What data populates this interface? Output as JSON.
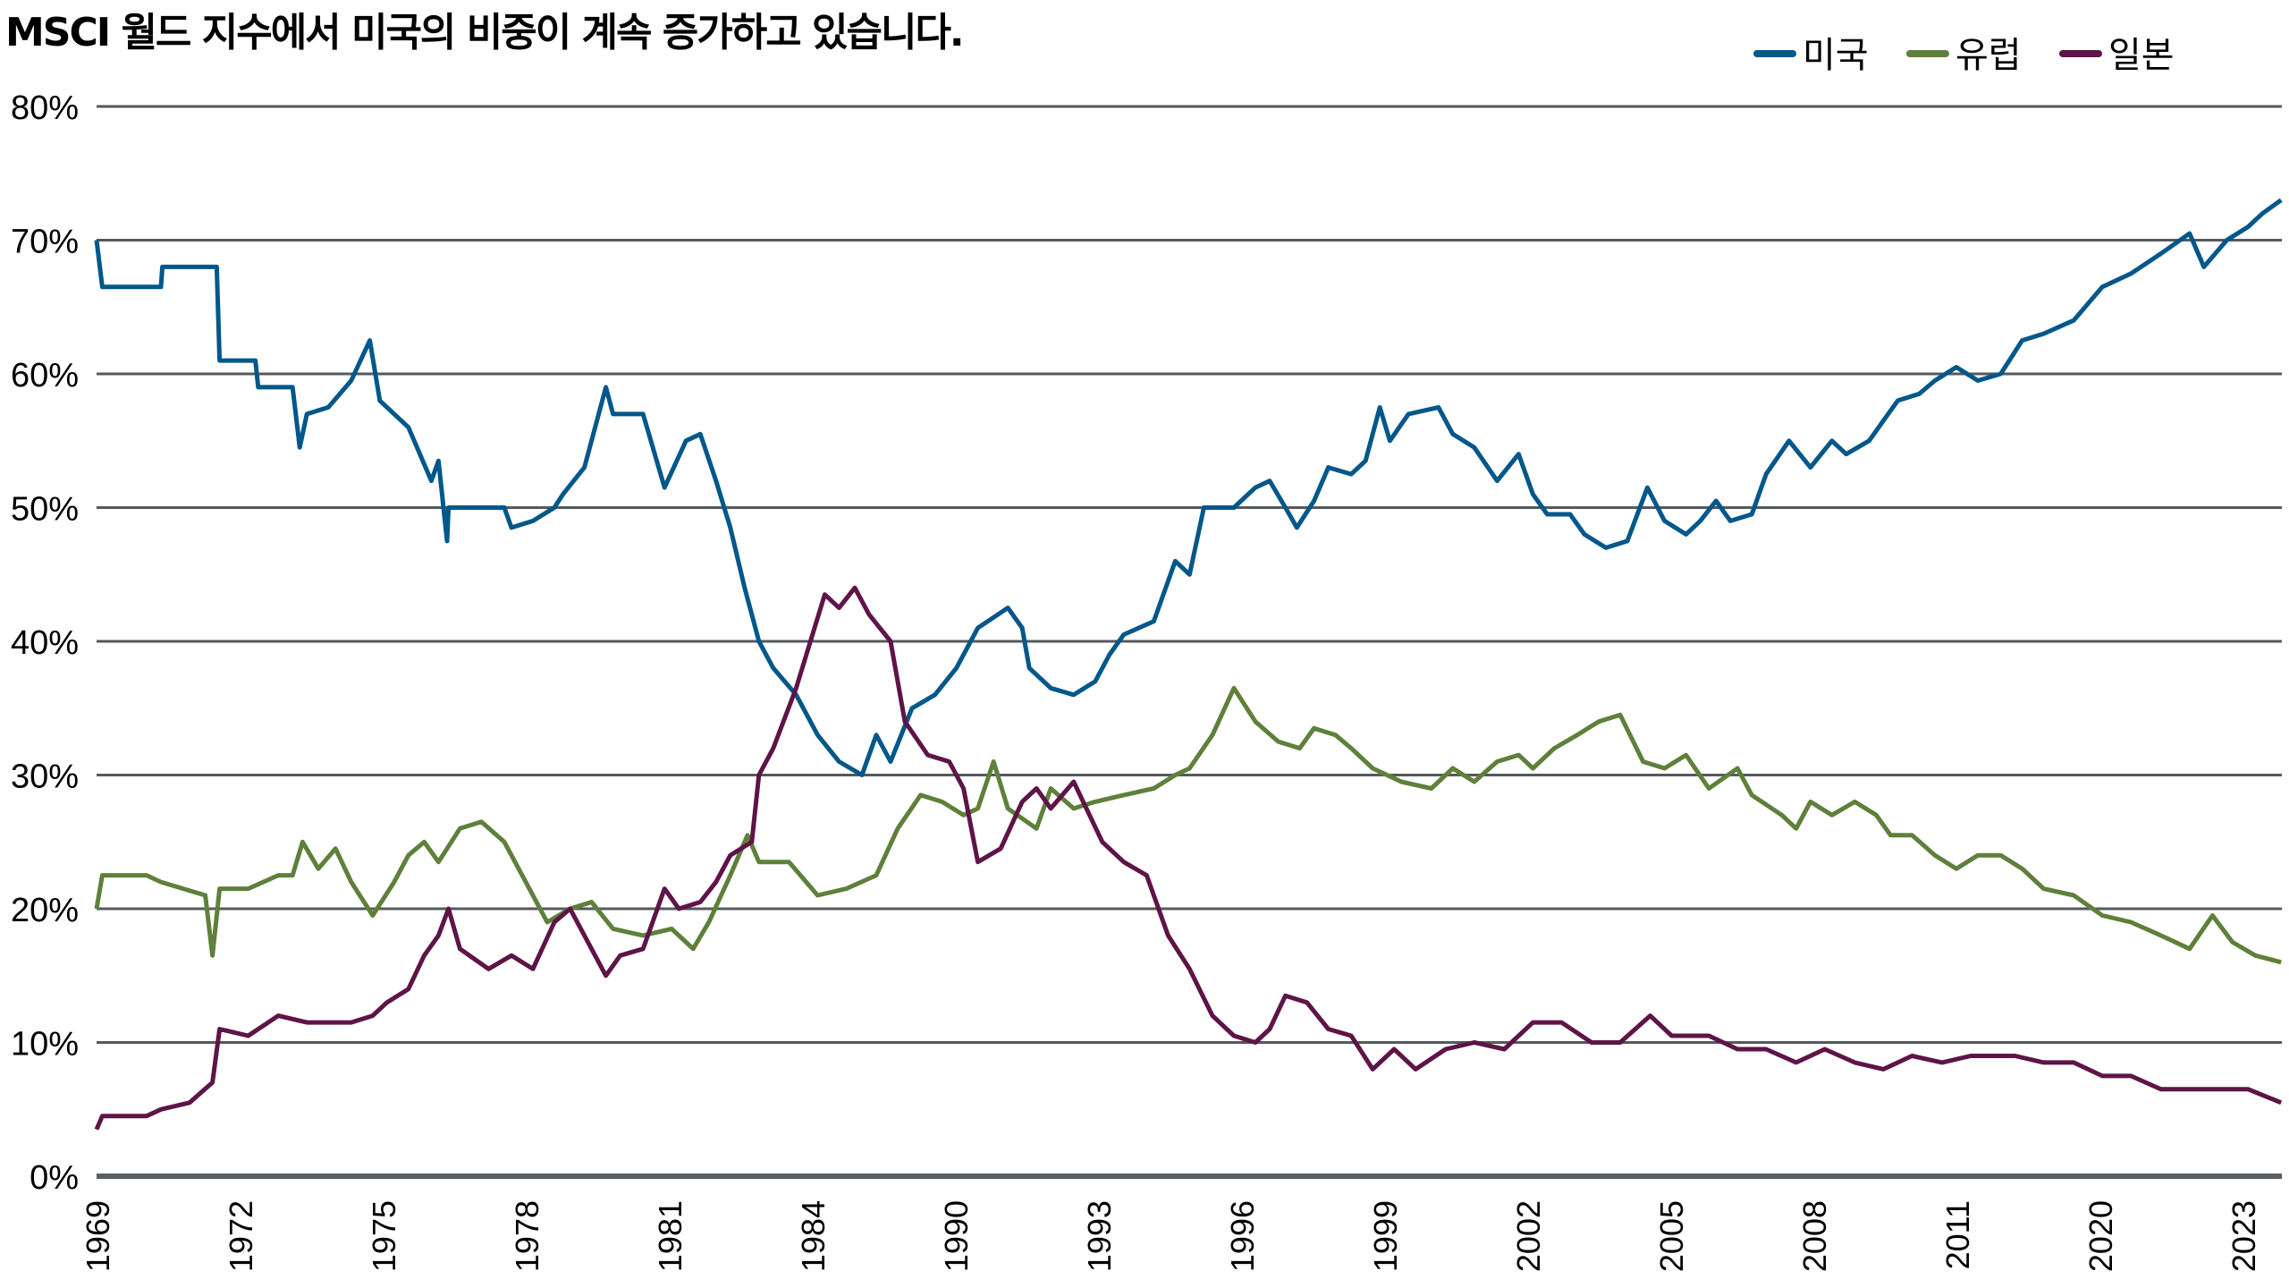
{
  "chart_data": {
    "type": "line",
    "title": "MSCI 월드 지수에서 미국의 비중이 계속 증가하고 있습니다.",
    "xlabel": "",
    "ylabel": "",
    "x_note": "x values are positions along the categorical year axis (0 = 1969 tick, 1 = next tick, ...)",
    "x_tick_labels": [
      "1969",
      "1972",
      "1975",
      "1978",
      "1981",
      "1984",
      "1990",
      "1993",
      "1996",
      "1999",
      "2002",
      "2005",
      "2008",
      "2011",
      "2020",
      "2023"
    ],
    "y_tick_labels": [
      "0%",
      "10%",
      "20%",
      "30%",
      "40%",
      "50%",
      "60%",
      "70%",
      "80%"
    ],
    "ylim": [
      0,
      80
    ],
    "xlim": [
      0,
      15.27
    ],
    "grid": "horizontal",
    "legend_position": "top-right",
    "series": [
      {
        "name": "미국",
        "color": "#00578a",
        "points": [
          [
            0,
            70
          ],
          [
            0.04,
            66.5
          ],
          [
            0.45,
            66.5
          ],
          [
            0.46,
            68
          ],
          [
            0.84,
            68
          ],
          [
            0.86,
            61
          ],
          [
            1.11,
            61
          ],
          [
            1.13,
            59
          ],
          [
            1.37,
            59
          ],
          [
            1.42,
            54.5
          ],
          [
            1.47,
            57
          ],
          [
            1.62,
            57.5
          ],
          [
            1.78,
            59.5
          ],
          [
            1.91,
            62.5
          ],
          [
            1.98,
            58
          ],
          [
            2.18,
            56
          ],
          [
            2.34,
            52
          ],
          [
            2.39,
            53.5
          ],
          [
            2.45,
            47.5
          ],
          [
            2.46,
            50
          ],
          [
            2.59,
            50
          ],
          [
            2.85,
            50
          ],
          [
            2.9,
            48.5
          ],
          [
            3.05,
            49
          ],
          [
            3.2,
            50
          ],
          [
            3.26,
            51
          ],
          [
            3.41,
            53
          ],
          [
            3.56,
            59
          ],
          [
            3.61,
            57
          ],
          [
            3.82,
            57
          ],
          [
            3.97,
            51.5
          ],
          [
            4.12,
            55
          ],
          [
            4.22,
            55.5
          ],
          [
            4.33,
            52
          ],
          [
            4.43,
            48.5
          ],
          [
            4.53,
            44
          ],
          [
            4.63,
            40
          ],
          [
            4.73,
            38
          ],
          [
            4.89,
            36
          ],
          [
            5.04,
            33
          ],
          [
            5.19,
            31
          ],
          [
            5.35,
            30
          ],
          [
            5.45,
            33
          ],
          [
            5.55,
            31
          ],
          [
            5.7,
            35
          ],
          [
            5.86,
            36
          ],
          [
            6.01,
            38
          ],
          [
            6.16,
            41
          ],
          [
            6.37,
            42.5
          ],
          [
            6.47,
            41
          ],
          [
            6.52,
            38
          ],
          [
            6.67,
            36.5
          ],
          [
            6.83,
            36
          ],
          [
            6.98,
            37
          ],
          [
            7.08,
            39
          ],
          [
            7.18,
            40.5
          ],
          [
            7.39,
            41.5
          ],
          [
            7.54,
            46
          ],
          [
            7.64,
            45
          ],
          [
            7.74,
            50
          ],
          [
            7.95,
            50
          ],
          [
            8.1,
            51.5
          ],
          [
            8.2,
            52
          ],
          [
            8.31,
            50
          ],
          [
            8.39,
            48.5
          ],
          [
            8.51,
            50.5
          ],
          [
            8.61,
            53
          ],
          [
            8.77,
            52.5
          ],
          [
            8.87,
            53.5
          ],
          [
            8.97,
            57.5
          ],
          [
            9.04,
            55
          ],
          [
            9.17,
            57
          ],
          [
            9.38,
            57.5
          ],
          [
            9.48,
            55.5
          ],
          [
            9.63,
            54.5
          ],
          [
            9.79,
            52
          ],
          [
            9.94,
            54
          ],
          [
            10.04,
            51
          ],
          [
            10.14,
            49.5
          ],
          [
            10.3,
            49.5
          ],
          [
            10.4,
            48
          ],
          [
            10.55,
            47
          ],
          [
            10.7,
            47.5
          ],
          [
            10.84,
            51.5
          ],
          [
            10.96,
            49
          ],
          [
            11.11,
            48
          ],
          [
            11.21,
            49
          ],
          [
            11.32,
            50.5
          ],
          [
            11.42,
            49
          ],
          [
            11.57,
            49.5
          ],
          [
            11.67,
            52.5
          ],
          [
            11.83,
            55
          ],
          [
            11.98,
            53
          ],
          [
            12.13,
            55
          ],
          [
            12.23,
            54
          ],
          [
            12.39,
            55
          ],
          [
            12.49,
            56.5
          ],
          [
            12.59,
            58
          ],
          [
            12.74,
            58.5
          ],
          [
            12.85,
            59.5
          ],
          [
            13.0,
            60.5
          ],
          [
            13.15,
            59.5
          ],
          [
            13.31,
            60
          ],
          [
            13.46,
            62.5
          ],
          [
            13.61,
            63
          ],
          [
            13.82,
            64
          ],
          [
            14.02,
            66.5
          ],
          [
            14.22,
            67.5
          ],
          [
            14.43,
            69
          ],
          [
            14.63,
            70.5
          ],
          [
            14.73,
            68
          ],
          [
            14.89,
            70
          ],
          [
            15.04,
            71
          ],
          [
            15.14,
            72
          ],
          [
            15.27,
            73
          ]
        ]
      },
      {
        "name": "유럽",
        "color": "#5f803b",
        "points": [
          [
            0,
            20
          ],
          [
            0.04,
            22.5
          ],
          [
            0.35,
            22.5
          ],
          [
            0.45,
            22
          ],
          [
            0.76,
            21
          ],
          [
            0.81,
            16.5
          ],
          [
            0.86,
            21.5
          ],
          [
            1.06,
            21.5
          ],
          [
            1.27,
            22.5
          ],
          [
            1.37,
            22.5
          ],
          [
            1.44,
            25
          ],
          [
            1.55,
            23
          ],
          [
            1.67,
            24.5
          ],
          [
            1.78,
            22
          ],
          [
            1.93,
            19.5
          ],
          [
            2.08,
            22
          ],
          [
            2.18,
            24
          ],
          [
            2.29,
            25
          ],
          [
            2.39,
            23.5
          ],
          [
            2.54,
            26
          ],
          [
            2.69,
            26.5
          ],
          [
            2.85,
            25
          ],
          [
            3.0,
            22
          ],
          [
            3.15,
            19
          ],
          [
            3.31,
            20
          ],
          [
            3.46,
            20.5
          ],
          [
            3.61,
            18.5
          ],
          [
            3.82,
            18
          ],
          [
            4.02,
            18.5
          ],
          [
            4.17,
            17
          ],
          [
            4.28,
            19
          ],
          [
            4.43,
            22.5
          ],
          [
            4.55,
            25.5
          ],
          [
            4.63,
            23.5
          ],
          [
            4.84,
            23.5
          ],
          [
            5.04,
            21
          ],
          [
            5.24,
            21.5
          ],
          [
            5.45,
            22.5
          ],
          [
            5.6,
            26
          ],
          [
            5.76,
            28.5
          ],
          [
            5.91,
            28
          ],
          [
            6.06,
            27
          ],
          [
            6.16,
            27.5
          ],
          [
            6.27,
            31
          ],
          [
            6.37,
            27.5
          ],
          [
            6.57,
            26
          ],
          [
            6.67,
            29
          ],
          [
            6.83,
            27.5
          ],
          [
            6.98,
            28
          ],
          [
            7.18,
            28.5
          ],
          [
            7.39,
            29
          ],
          [
            7.54,
            30
          ],
          [
            7.64,
            30.5
          ],
          [
            7.8,
            33
          ],
          [
            7.95,
            36.5
          ],
          [
            8.1,
            34
          ],
          [
            8.26,
            32.5
          ],
          [
            8.41,
            32
          ],
          [
            8.51,
            33.5
          ],
          [
            8.66,
            33
          ],
          [
            8.77,
            32
          ],
          [
            8.92,
            30.5
          ],
          [
            9.12,
            29.5
          ],
          [
            9.33,
            29
          ],
          [
            9.48,
            30.5
          ],
          [
            9.63,
            29.5
          ],
          [
            9.79,
            31
          ],
          [
            9.94,
            31.5
          ],
          [
            10.04,
            30.5
          ],
          [
            10.19,
            32
          ],
          [
            10.35,
            33
          ],
          [
            10.5,
            34
          ],
          [
            10.65,
            34.5
          ],
          [
            10.81,
            31
          ],
          [
            10.96,
            30.5
          ],
          [
            11.11,
            31.5
          ],
          [
            11.27,
            29
          ],
          [
            11.47,
            30.5
          ],
          [
            11.57,
            28.5
          ],
          [
            11.78,
            27
          ],
          [
            11.88,
            26
          ],
          [
            11.98,
            28
          ],
          [
            12.13,
            27
          ],
          [
            12.29,
            28
          ],
          [
            12.44,
            27
          ],
          [
            12.54,
            25.5
          ],
          [
            12.69,
            25.5
          ],
          [
            12.85,
            24
          ],
          [
            13.0,
            23
          ],
          [
            13.15,
            24
          ],
          [
            13.31,
            24
          ],
          [
            13.46,
            23
          ],
          [
            13.61,
            21.5
          ],
          [
            13.82,
            21
          ],
          [
            14.02,
            19.5
          ],
          [
            14.22,
            19
          ],
          [
            14.43,
            18
          ],
          [
            14.63,
            17
          ],
          [
            14.79,
            19.5
          ],
          [
            14.93,
            17.5
          ],
          [
            15.09,
            16.5
          ],
          [
            15.27,
            16
          ]
        ]
      },
      {
        "name": "일본",
        "color": "#5e1447",
        "points": [
          [
            0,
            3.5
          ],
          [
            0.04,
            4.5
          ],
          [
            0.35,
            4.5
          ],
          [
            0.45,
            5
          ],
          [
            0.65,
            5.5
          ],
          [
            0.81,
            7
          ],
          [
            0.86,
            11
          ],
          [
            1.06,
            10.5
          ],
          [
            1.27,
            12
          ],
          [
            1.47,
            11.5
          ],
          [
            1.78,
            11.5
          ],
          [
            1.93,
            12
          ],
          [
            2.03,
            13
          ],
          [
            2.18,
            14
          ],
          [
            2.29,
            16.5
          ],
          [
            2.39,
            18
          ],
          [
            2.46,
            20
          ],
          [
            2.54,
            17
          ],
          [
            2.74,
            15.5
          ],
          [
            2.9,
            16.5
          ],
          [
            3.05,
            15.5
          ],
          [
            3.2,
            19
          ],
          [
            3.31,
            20
          ],
          [
            3.41,
            18
          ],
          [
            3.56,
            15
          ],
          [
            3.66,
            16.5
          ],
          [
            3.82,
            17
          ],
          [
            3.97,
            21.5
          ],
          [
            4.07,
            20
          ],
          [
            4.22,
            20.5
          ],
          [
            4.33,
            22
          ],
          [
            4.43,
            24
          ],
          [
            4.58,
            25
          ],
          [
            4.63,
            30
          ],
          [
            4.73,
            32
          ],
          [
            4.89,
            36.5
          ],
          [
            4.99,
            40
          ],
          [
            5.09,
            43.5
          ],
          [
            5.19,
            42.5
          ],
          [
            5.3,
            44
          ],
          [
            5.4,
            42
          ],
          [
            5.55,
            40
          ],
          [
            5.65,
            34
          ],
          [
            5.81,
            31.5
          ],
          [
            5.96,
            31
          ],
          [
            6.06,
            29
          ],
          [
            6.16,
            23.5
          ],
          [
            6.32,
            24.5
          ],
          [
            6.47,
            28
          ],
          [
            6.57,
            29
          ],
          [
            6.67,
            27.5
          ],
          [
            6.83,
            29.5
          ],
          [
            7.03,
            25
          ],
          [
            7.18,
            23.5
          ],
          [
            7.34,
            22.5
          ],
          [
            7.49,
            18
          ],
          [
            7.64,
            15.5
          ],
          [
            7.8,
            12
          ],
          [
            7.95,
            10.5
          ],
          [
            8.1,
            10
          ],
          [
            8.2,
            11
          ],
          [
            8.31,
            13.5
          ],
          [
            8.46,
            13
          ],
          [
            8.61,
            11
          ],
          [
            8.77,
            10.5
          ],
          [
            8.92,
            8
          ],
          [
            9.07,
            9.5
          ],
          [
            9.22,
            8
          ],
          [
            9.43,
            9.5
          ],
          [
            9.63,
            10
          ],
          [
            9.84,
            9.5
          ],
          [
            10.04,
            11.5
          ],
          [
            10.24,
            11.5
          ],
          [
            10.45,
            10
          ],
          [
            10.65,
            10
          ],
          [
            10.86,
            12
          ],
          [
            11.01,
            10.5
          ],
          [
            11.27,
            10.5
          ],
          [
            11.47,
            9.5
          ],
          [
            11.67,
            9.5
          ],
          [
            11.88,
            8.5
          ],
          [
            12.08,
            9.5
          ],
          [
            12.29,
            8.5
          ],
          [
            12.49,
            8
          ],
          [
            12.69,
            9
          ],
          [
            12.9,
            8.5
          ],
          [
            13.1,
            9
          ],
          [
            13.41,
            9
          ],
          [
            13.61,
            8.5
          ],
          [
            13.82,
            8.5
          ],
          [
            14.02,
            7.5
          ],
          [
            14.22,
            7.5
          ],
          [
            14.43,
            6.5
          ],
          [
            14.63,
            6.5
          ],
          [
            14.84,
            6.5
          ],
          [
            15.04,
            6.5
          ],
          [
            15.27,
            5.5
          ]
        ]
      }
    ]
  }
}
